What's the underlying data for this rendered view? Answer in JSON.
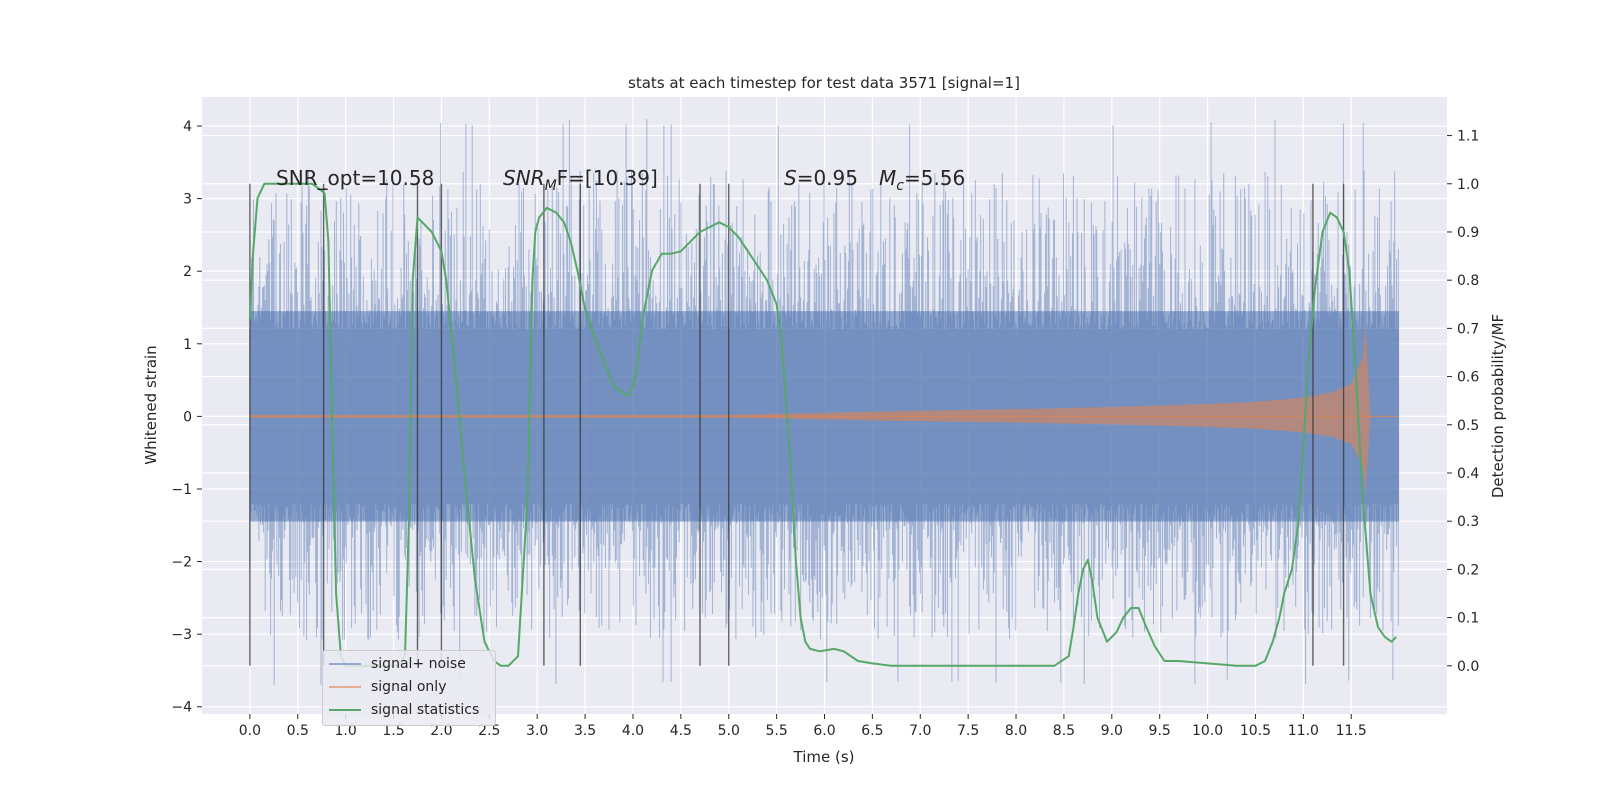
{
  "chart_data": {
    "type": "line",
    "title": "stats at each timestep for test data 3571 [signal=1]",
    "xlabel": "Time (s)",
    "ylabel": "Whitened strain",
    "y2label": "Detection probability/MF",
    "xlim": [
      -0.5,
      12.5
    ],
    "ylim": [
      -4.1,
      4.4
    ],
    "y2lim": [
      -0.1,
      1.18
    ],
    "xticks": [
      "0.0",
      "0.5",
      "1.0",
      "1.5",
      "2.0",
      "2.5",
      "3.0",
      "3.5",
      "4.0",
      "4.5",
      "5.0",
      "5.5",
      "6.0",
      "6.5",
      "7.0",
      "7.5",
      "8.0",
      "8.5",
      "9.0",
      "9.5",
      "10.0",
      "10.5",
      "11.0",
      "11.5"
    ],
    "yticks": [
      -4,
      -3,
      -2,
      -1,
      0,
      1,
      2,
      3,
      4
    ],
    "y2ticks": [
      "0.0",
      "0.1",
      "0.2",
      "0.3",
      "0.4",
      "0.5",
      "0.6",
      "0.7",
      "0.8",
      "0.9",
      "1.0",
      "1.1"
    ],
    "grid": true,
    "legend_position": "lower-left",
    "annotations": {
      "snr_opt": "SNR_opt=10.58",
      "snr_mf_prefix": "SNR",
      "snr_mf_sub": "M",
      "snr_mf_suffix": "F=[10.39]",
      "s_var": "S",
      "s_value": "=0.95",
      "mc_var": "M",
      "mc_sub": "c",
      "mc_value": "=5.56"
    },
    "series": [
      {
        "name": "signal+ noise",
        "color": "#4c72b0",
        "noise_envelope": {
          "core": 1.45,
          "peak_max": 4.1,
          "peak_min": -3.7
        },
        "t_range": [
          0.0,
          12.0
        ]
      },
      {
        "name": "signal only",
        "color": "#dd8452",
        "amplitude_points": [
          [
            0.0,
            0.02
          ],
          [
            5.0,
            0.02
          ],
          [
            6.0,
            0.05
          ],
          [
            7.0,
            0.08
          ],
          [
            8.0,
            0.1
          ],
          [
            9.0,
            0.13
          ],
          [
            10.0,
            0.17
          ],
          [
            10.5,
            0.2
          ],
          [
            11.0,
            0.26
          ],
          [
            11.3,
            0.33
          ],
          [
            11.5,
            0.45
          ],
          [
            11.62,
            0.8
          ],
          [
            11.65,
            1.25
          ],
          [
            11.7,
            0.0
          ]
        ]
      },
      {
        "name": "signal statistics",
        "color": "#55a868",
        "x": [
          0.0,
          0.03,
          0.08,
          0.15,
          0.25,
          0.4,
          0.55,
          0.65,
          0.72,
          0.78,
          0.82,
          0.86,
          0.9,
          0.95,
          1.0,
          1.2,
          1.4,
          1.55,
          1.62,
          1.66,
          1.7,
          1.75,
          1.8,
          1.9,
          2.0,
          2.05,
          2.15,
          2.25,
          2.35,
          2.45,
          2.55,
          2.62,
          2.7,
          2.8,
          2.9,
          2.95,
          2.98,
          3.02,
          3.1,
          3.2,
          3.28,
          3.35,
          3.42,
          3.5,
          3.6,
          3.7,
          3.8,
          3.9,
          3.95,
          4.0,
          4.05,
          4.1,
          4.2,
          4.3,
          4.4,
          4.5,
          4.6,
          4.7,
          4.8,
          4.9,
          5.0,
          5.1,
          5.2,
          5.3,
          5.4,
          5.5,
          5.55,
          5.6,
          5.65,
          5.7,
          5.75,
          5.8,
          5.85,
          5.95,
          6.1,
          6.2,
          6.35,
          6.5,
          6.7,
          7.0,
          7.5,
          8.0,
          8.4,
          8.55,
          8.6,
          8.65,
          8.7,
          8.75,
          8.8,
          8.85,
          8.95,
          9.05,
          9.12,
          9.2,
          9.28,
          9.36,
          9.45,
          9.55,
          9.7,
          10.0,
          10.3,
          10.5,
          10.6,
          10.68,
          10.75,
          10.8,
          10.88,
          10.95,
          11.0,
          11.05,
          11.12,
          11.2,
          11.28,
          11.35,
          11.42,
          11.48,
          11.55,
          11.62,
          11.7,
          11.78,
          11.85,
          11.92,
          11.97
        ],
        "y": [
          0.72,
          0.85,
          0.97,
          1.0,
          1.0,
          1.0,
          1.0,
          1.0,
          0.99,
          0.98,
          0.88,
          0.5,
          0.15,
          0.02,
          0.0,
          0.0,
          0.0,
          0.0,
          0.02,
          0.3,
          0.8,
          0.93,
          0.92,
          0.9,
          0.86,
          0.8,
          0.6,
          0.38,
          0.18,
          0.05,
          0.01,
          0.0,
          0.0,
          0.02,
          0.35,
          0.8,
          0.9,
          0.93,
          0.95,
          0.94,
          0.92,
          0.88,
          0.82,
          0.74,
          0.68,
          0.63,
          0.58,
          0.565,
          0.56,
          0.58,
          0.63,
          0.72,
          0.82,
          0.855,
          0.855,
          0.86,
          0.88,
          0.9,
          0.91,
          0.92,
          0.91,
          0.89,
          0.86,
          0.83,
          0.8,
          0.75,
          0.68,
          0.55,
          0.4,
          0.22,
          0.1,
          0.05,
          0.035,
          0.03,
          0.035,
          0.03,
          0.01,
          0.005,
          0.0,
          0.0,
          0.0,
          0.0,
          0.0,
          0.02,
          0.08,
          0.15,
          0.2,
          0.22,
          0.17,
          0.1,
          0.05,
          0.07,
          0.1,
          0.12,
          0.12,
          0.08,
          0.04,
          0.01,
          0.01,
          0.005,
          0.0,
          0.0,
          0.01,
          0.05,
          0.1,
          0.15,
          0.2,
          0.3,
          0.45,
          0.62,
          0.78,
          0.9,
          0.94,
          0.93,
          0.9,
          0.82,
          0.6,
          0.35,
          0.15,
          0.08,
          0.06,
          0.05,
          0.06
        ]
      }
    ],
    "vertical_markers": [
      0.0,
      0.77,
      1.75,
      2.0,
      3.07,
      3.45,
      4.7,
      5.0,
      11.1,
      11.42
    ],
    "legend": [
      "signal+ noise",
      "signal only",
      "signal statistics"
    ]
  }
}
